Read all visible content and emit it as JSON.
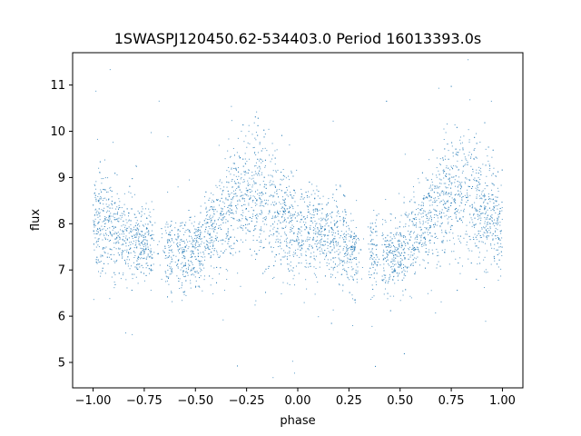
{
  "chart_data": {
    "type": "scatter",
    "title": "1SWASPJ120450.62-534403.0 Period 16013393.0s",
    "xlabel": "phase",
    "ylabel": "flux",
    "xlim": [
      -1.1,
      1.1
    ],
    "ylim": [
      4.45,
      11.7
    ],
    "xticks": [
      -1.0,
      -0.75,
      -0.5,
      -0.25,
      0.0,
      0.25,
      0.5,
      0.75,
      1.0
    ],
    "xtick_labels": [
      "−1.00",
      "−0.75",
      "−0.50",
      "−0.25",
      "0.00",
      "0.25",
      "0.50",
      "0.75",
      "1.00"
    ],
    "yticks": [
      5,
      6,
      7,
      8,
      9,
      10,
      11
    ],
    "ytick_labels": [
      "5",
      "6",
      "7",
      "8",
      "9",
      "10",
      "11"
    ],
    "grid": false,
    "legend": "none",
    "marker_color": "#1f77b4",
    "series": [
      {
        "profile_phase": [
          -1.0,
          -0.95,
          -0.9,
          -0.85,
          -0.8,
          -0.75,
          -0.7,
          -0.65,
          -0.6,
          -0.55,
          -0.5,
          -0.45,
          -0.4,
          -0.35,
          -0.3,
          -0.25,
          -0.2,
          -0.15,
          -0.1,
          -0.05,
          0.0,
          0.05,
          0.1,
          0.15,
          0.2,
          0.25,
          0.3,
          0.35,
          0.4,
          0.45,
          0.5,
          0.55,
          0.6,
          0.65,
          0.7,
          0.75,
          0.8,
          0.85,
          0.9,
          0.95,
          1.0
        ],
        "profile_flux_center": [
          8.0,
          8.05,
          7.9,
          7.75,
          7.65,
          7.55,
          7.5,
          7.45,
          7.35,
          7.3,
          7.4,
          7.6,
          7.9,
          8.2,
          8.45,
          8.6,
          8.7,
          8.5,
          8.2,
          8.0,
          7.9,
          7.85,
          7.8,
          7.7,
          7.6,
          7.5,
          7.45,
          7.4,
          7.35,
          7.3,
          7.4,
          7.6,
          7.9,
          8.2,
          8.45,
          8.6,
          8.7,
          8.6,
          8.3,
          8.1,
          8.0
        ],
        "profile_flux_spread": [
          0.55,
          0.55,
          0.5,
          0.45,
          0.45,
          0.4,
          0.4,
          0.4,
          0.4,
          0.4,
          0.4,
          0.45,
          0.5,
          0.55,
          0.6,
          0.65,
          0.7,
          0.65,
          0.6,
          0.55,
          0.5,
          0.5,
          0.5,
          0.45,
          0.45,
          0.4,
          0.4,
          0.4,
          0.4,
          0.4,
          0.4,
          0.45,
          0.5,
          0.55,
          0.6,
          0.65,
          0.7,
          0.65,
          0.6,
          0.55,
          0.55
        ],
        "gap_phases": [
          -0.7,
          -0.68,
          -0.66,
          -0.6,
          0.3,
          0.32,
          0.34,
          0.4
        ]
      }
    ]
  }
}
